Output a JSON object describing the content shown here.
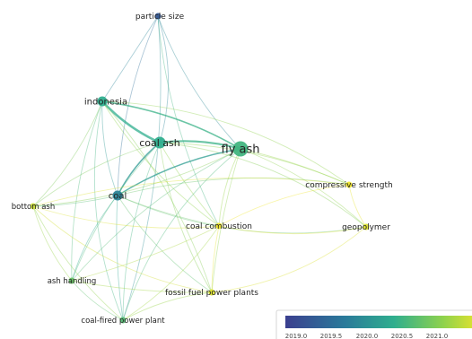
{
  "network": {
    "nodes": [
      {
        "id": "particle-size",
        "label": "particle size",
        "year": 2019.2
      },
      {
        "id": "indonesia",
        "label": "indonesia",
        "year": 2020.0
      },
      {
        "id": "coal-ash",
        "label": "coal ash",
        "year": 2020.0
      },
      {
        "id": "fly-ash",
        "label": "fly ash",
        "year": 2020.1
      },
      {
        "id": "coal",
        "label": "coal",
        "year": 2019.6
      },
      {
        "id": "compressive-strength",
        "label": "compressive strength",
        "year": 2021.0
      },
      {
        "id": "bottom-ash",
        "label": "bottom ash",
        "year": 2020.8
      },
      {
        "id": "coal-combustion",
        "label": "coal combustion",
        "year": 2021.0
      },
      {
        "id": "geopolymer",
        "label": "geopolymer",
        "year": 2020.9
      },
      {
        "id": "ash-handling",
        "label": "ash handling",
        "year": 2020.3
      },
      {
        "id": "fossil-fuel-power-plants",
        "label": "fossil fuel power plants",
        "year": 2020.9
      },
      {
        "id": "coal-fired-power-plant",
        "label": "coal-fired power plant",
        "year": 2020.2
      }
    ]
  },
  "legend": {
    "ticks": [
      "2019.0",
      "2019.5",
      "2020.0",
      "2020.5",
      "2021.0"
    ],
    "colors": [
      "#3b3f8f",
      "#2a7a9a",
      "#2fae8e",
      "#8fd24c",
      "#f0e52a"
    ]
  }
}
